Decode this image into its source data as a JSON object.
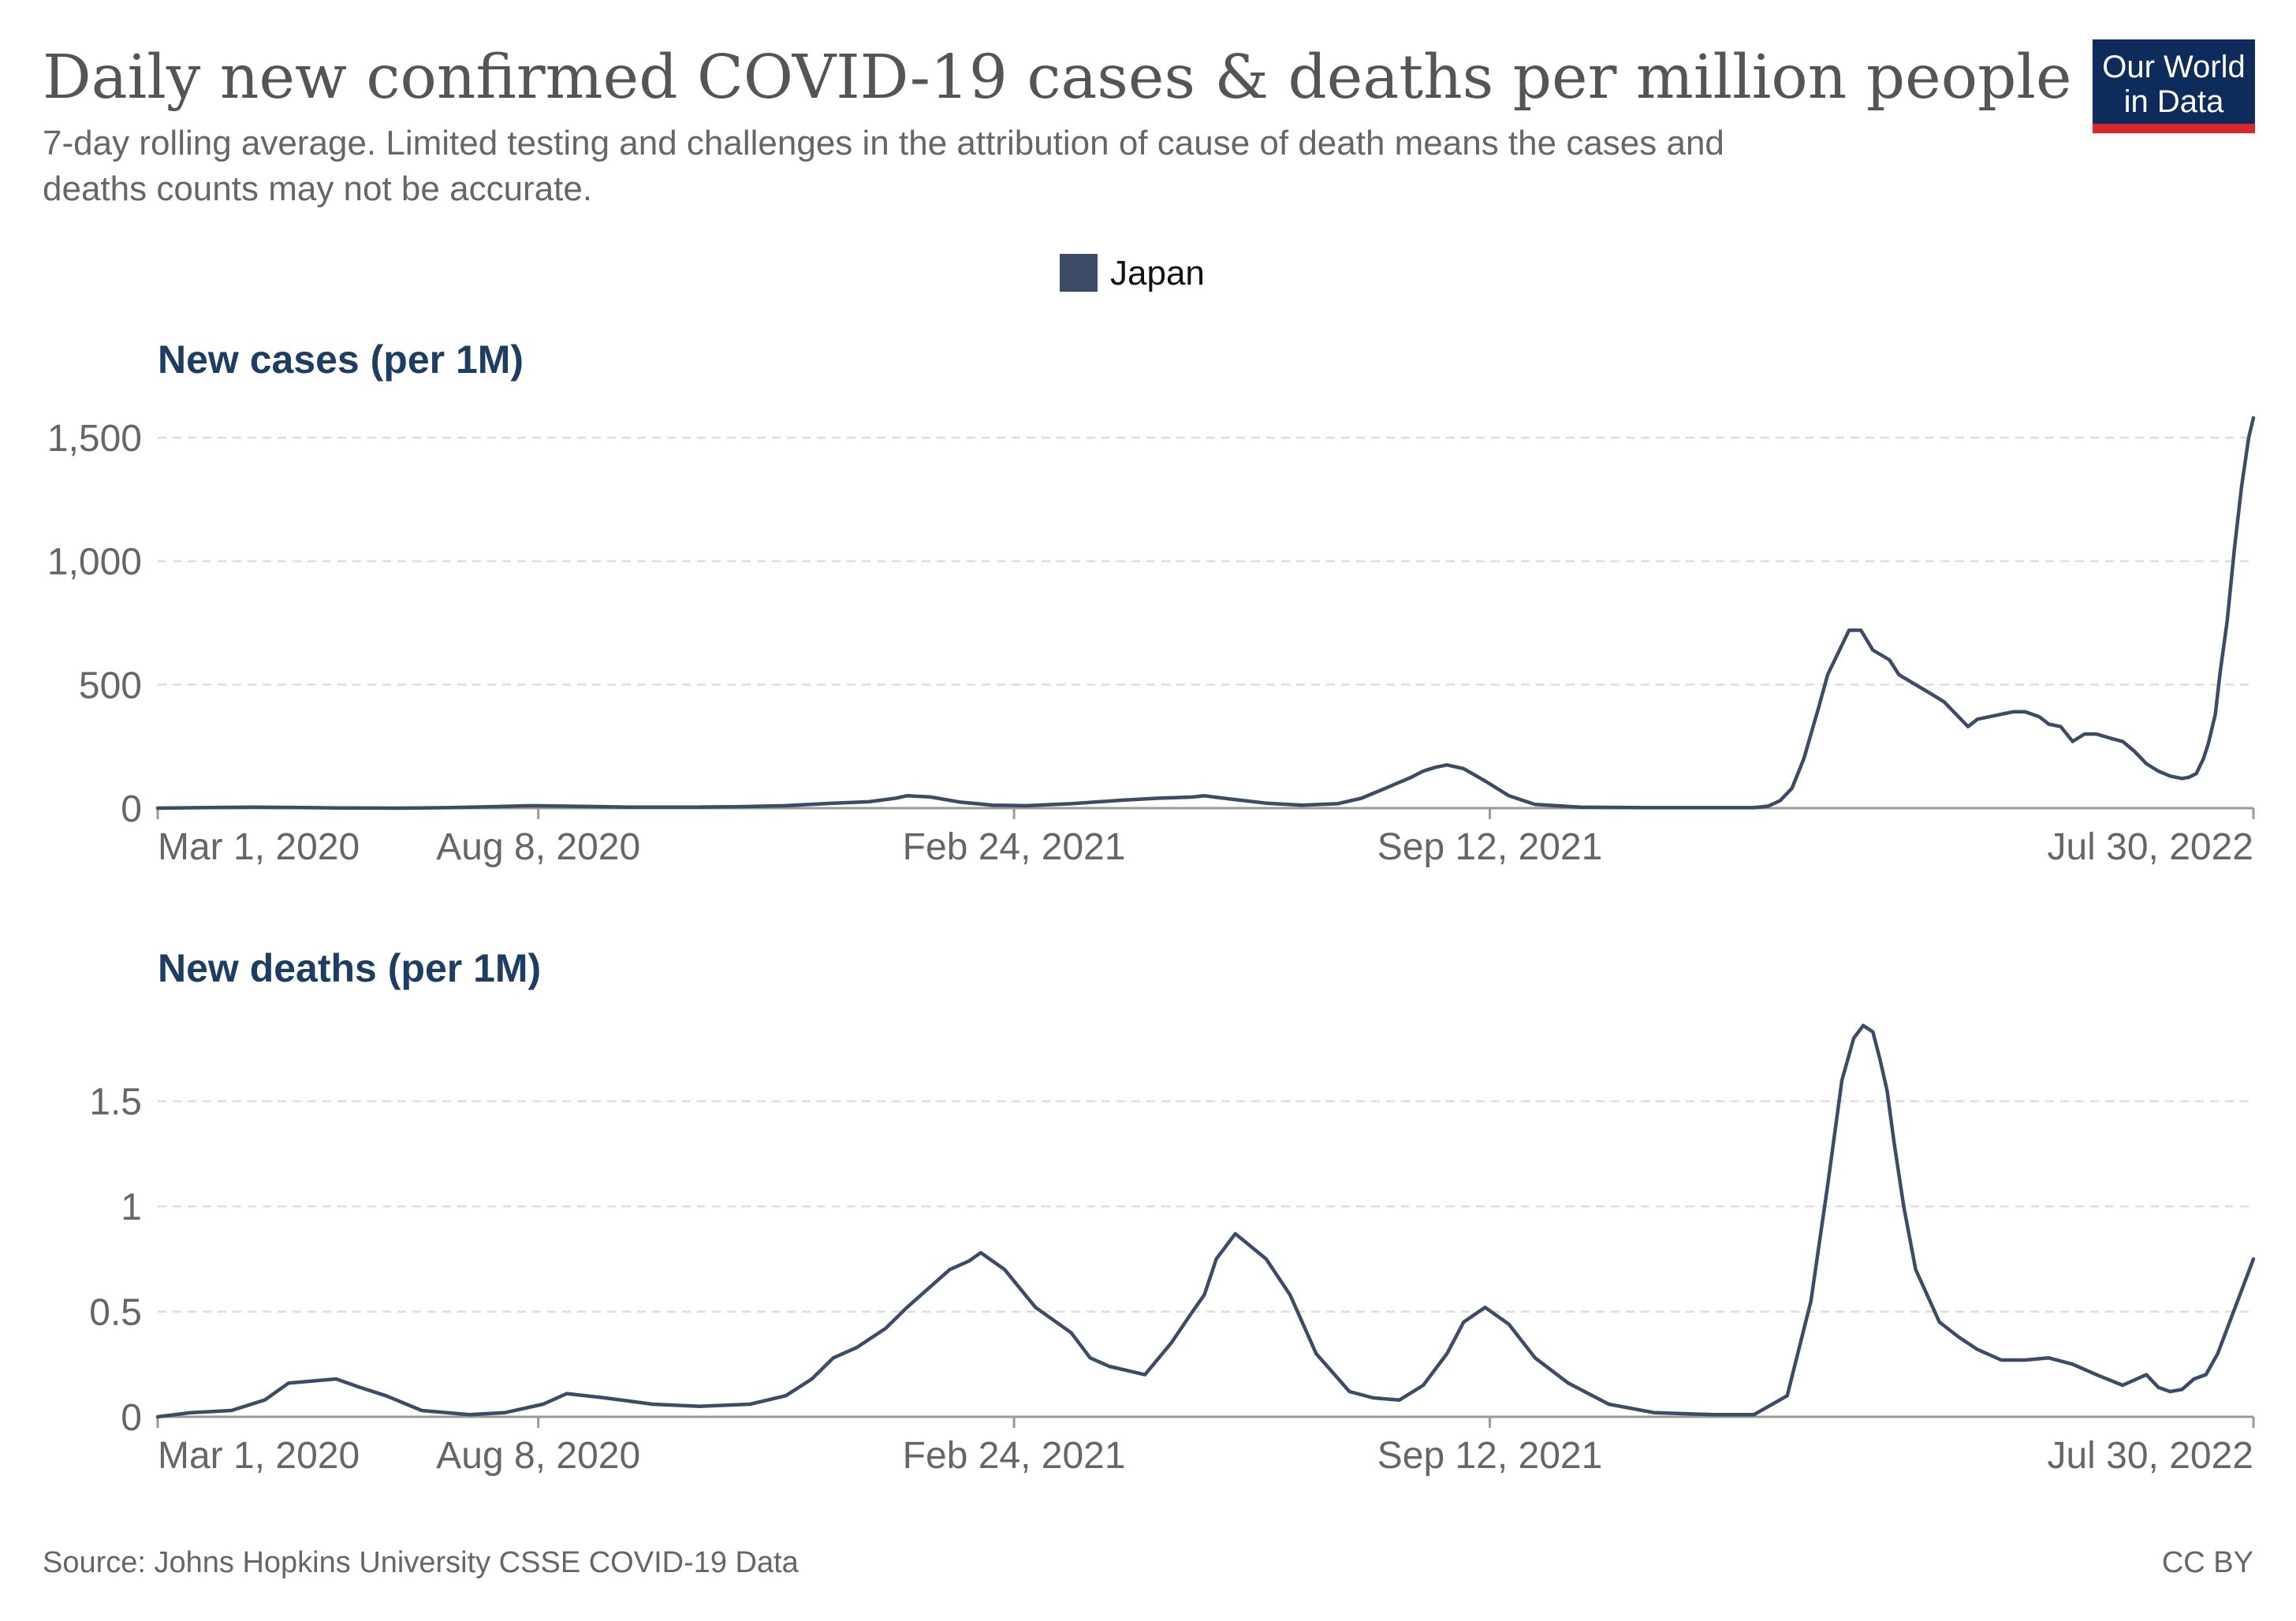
{
  "header": {
    "title": "Daily new confirmed COVID-19 cases & deaths per million people",
    "subtitle_line1": "7-day rolling average. Limited testing and challenges in the attribution of cause of death means the cases and",
    "subtitle_line2": "deaths counts may not be accurate."
  },
  "logo": {
    "line1": "Our World",
    "line2": "in Data",
    "bg_color": "#0d2c5b",
    "bar_color": "#d8272d"
  },
  "legend": {
    "label": "Japan",
    "color": "#3c4c66"
  },
  "footer": {
    "source": "Source: Johns Hopkins University CSSE COVID-19 Data",
    "license": "CC BY"
  },
  "chart_data": [
    {
      "type": "line",
      "title": "New cases (per 1M)",
      "x_axis": "date",
      "xlim": [
        "2020-03-01",
        "2022-07-30"
      ],
      "ylim": [
        0,
        1580
      ],
      "yticks": [
        0,
        500,
        1000,
        1500
      ],
      "ytick_labels": [
        "0",
        "500",
        "1,000",
        "1,500"
      ],
      "xticks": [
        "2020-03-01",
        "2020-08-08",
        "2021-02-24",
        "2021-09-12",
        "2022-07-30"
      ],
      "xtick_labels": [
        "Mar 1, 2020",
        "Aug 8, 2020",
        "Feb 24, 2021",
        "Sep 12, 2021",
        "Jul 30, 2022"
      ],
      "grid": true,
      "series": [
        {
          "name": "Japan",
          "color": "#3c4c66",
          "x": [
            "2020-03-01",
            "2020-03-20",
            "2020-04-10",
            "2020-04-25",
            "2020-05-15",
            "2020-06-10",
            "2020-07-01",
            "2020-07-20",
            "2020-08-05",
            "2020-08-20",
            "2020-09-15",
            "2020-10-15",
            "2020-11-01",
            "2020-11-20",
            "2020-12-10",
            "2020-12-25",
            "2021-01-05",
            "2021-01-10",
            "2021-01-20",
            "2021-02-01",
            "2021-02-15",
            "2021-03-01",
            "2021-03-20",
            "2021-04-10",
            "2021-04-25",
            "2021-05-10",
            "2021-05-15",
            "2021-05-25",
            "2021-06-10",
            "2021-06-25",
            "2021-07-10",
            "2021-07-20",
            "2021-07-30",
            "2021-08-10",
            "2021-08-15",
            "2021-08-20",
            "2021-08-25",
            "2021-09-01",
            "2021-09-10",
            "2021-09-20",
            "2021-10-01",
            "2021-10-20",
            "2021-11-15",
            "2021-12-15",
            "2022-01-01",
            "2022-01-07",
            "2022-01-12",
            "2022-01-17",
            "2022-01-22",
            "2022-01-28",
            "2022-02-01",
            "2022-02-04",
            "2022-02-07",
            "2022-02-10",
            "2022-02-15",
            "2022-02-20",
            "2022-02-27",
            "2022-03-03",
            "2022-03-10",
            "2022-03-17",
            "2022-03-22",
            "2022-03-27",
            "2022-04-01",
            "2022-04-05",
            "2022-04-10",
            "2022-04-15",
            "2022-04-20",
            "2022-04-25",
            "2022-05-01",
            "2022-05-05",
            "2022-05-10",
            "2022-05-15",
            "2022-05-20",
            "2022-05-25",
            "2022-06-01",
            "2022-06-05",
            "2022-06-10",
            "2022-06-15",
            "2022-06-20",
            "2022-06-25",
            "2022-06-30",
            "2022-07-03",
            "2022-07-06",
            "2022-07-09",
            "2022-07-11",
            "2022-07-14",
            "2022-07-16",
            "2022-07-19",
            "2022-07-22",
            "2022-07-25",
            "2022-07-28",
            "2022-07-30"
          ],
          "y": [
            0,
            2,
            4,
            3,
            1,
            0,
            2,
            6,
            10,
            8,
            4,
            4,
            6,
            10,
            20,
            26,
            40,
            50,
            45,
            25,
            12,
            10,
            18,
            32,
            40,
            45,
            50,
            38,
            20,
            12,
            18,
            40,
            80,
            125,
            150,
            165,
            175,
            160,
            110,
            50,
            15,
            4,
            2,
            2,
            2,
            8,
            30,
            80,
            200,
            400,
            540,
            600,
            660,
            720,
            720,
            640,
            600,
            540,
            500,
            460,
            430,
            380,
            330,
            360,
            370,
            380,
            390,
            390,
            370,
            340,
            330,
            270,
            300,
            300,
            280,
            270,
            230,
            180,
            150,
            130,
            120,
            125,
            140,
            200,
            260,
            380,
            550,
            760,
            1050,
            1300,
            1500,
            1580
          ]
        }
      ]
    },
    {
      "type": "line",
      "title": "New deaths (per 1M)",
      "x_axis": "date",
      "xlim": [
        "2020-03-01",
        "2022-07-30"
      ],
      "ylim": [
        0,
        1.9
      ],
      "yticks": [
        0,
        0.5,
        1,
        1.5
      ],
      "ytick_labels": [
        "0",
        "0.5",
        "1",
        "1.5"
      ],
      "xticks": [
        "2020-03-01",
        "2020-08-08",
        "2021-02-24",
        "2021-09-12",
        "2022-07-30"
      ],
      "xtick_labels": [
        "Mar 1, 2020",
        "Aug 8, 2020",
        "Feb 24, 2021",
        "Sep 12, 2021",
        "Jul 30, 2022"
      ],
      "grid": true,
      "series": [
        {
          "name": "Japan",
          "color": "#3c4c66",
          "x": [
            "2020-03-01",
            "2020-03-15",
            "2020-04-01",
            "2020-04-15",
            "2020-04-25",
            "2020-05-05",
            "2020-05-15",
            "2020-05-25",
            "2020-06-05",
            "2020-06-20",
            "2020-07-10",
            "2020-07-25",
            "2020-08-10",
            "2020-08-20",
            "2020-09-05",
            "2020-09-25",
            "2020-10-15",
            "2020-11-05",
            "2020-11-20",
            "2020-12-01",
            "2020-12-10",
            "2020-12-20",
            "2021-01-01",
            "2021-01-10",
            "2021-01-20",
            "2021-01-28",
            "2021-02-05",
            "2021-02-10",
            "2021-02-20",
            "2021-03-05",
            "2021-03-20",
            "2021-03-28",
            "2021-04-05",
            "2021-04-20",
            "2021-05-01",
            "2021-05-10",
            "2021-05-15",
            "2021-05-20",
            "2021-05-28",
            "2021-06-10",
            "2021-06-20",
            "2021-07-01",
            "2021-07-15",
            "2021-07-25",
            "2021-08-05",
            "2021-08-15",
            "2021-08-25",
            "2021-09-01",
            "2021-09-10",
            "2021-09-20",
            "2021-10-01",
            "2021-10-15",
            "2021-11-01",
            "2021-11-20",
            "2021-12-15",
            "2022-01-01",
            "2022-01-15",
            "2022-01-25",
            "2022-02-01",
            "2022-02-07",
            "2022-02-12",
            "2022-02-16",
            "2022-02-20",
            "2022-02-23",
            "2022-02-26",
            "2022-03-01",
            "2022-03-05",
            "2022-03-10",
            "2022-03-20",
            "2022-03-28",
            "2022-04-05",
            "2022-04-15",
            "2022-04-25",
            "2022-05-05",
            "2022-05-15",
            "2022-05-25",
            "2022-06-05",
            "2022-06-15",
            "2022-06-20",
            "2022-06-25",
            "2022-06-30",
            "2022-07-05",
            "2022-07-10",
            "2022-07-15",
            "2022-07-20",
            "2022-07-25",
            "2022-07-30"
          ],
          "y": [
            0,
            0.02,
            0.03,
            0.08,
            0.16,
            0.17,
            0.18,
            0.14,
            0.1,
            0.03,
            0.01,
            0.02,
            0.06,
            0.11,
            0.09,
            0.06,
            0.05,
            0.06,
            0.1,
            0.18,
            0.28,
            0.33,
            0.42,
            0.52,
            0.62,
            0.7,
            0.74,
            0.78,
            0.7,
            0.52,
            0.4,
            0.28,
            0.24,
            0.2,
            0.35,
            0.5,
            0.58,
            0.75,
            0.87,
            0.75,
            0.58,
            0.3,
            0.12,
            0.09,
            0.08,
            0.15,
            0.3,
            0.45,
            0.52,
            0.44,
            0.28,
            0.16,
            0.06,
            0.02,
            0.01,
            0.01,
            0.1,
            0.55,
            1.1,
            1.6,
            1.8,
            1.86,
            1.83,
            1.7,
            1.55,
            1.3,
            1.0,
            0.7,
            0.45,
            0.38,
            0.32,
            0.27,
            0.27,
            0.28,
            0.25,
            0.2,
            0.15,
            0.2,
            0.14,
            0.12,
            0.13,
            0.18,
            0.2,
            0.3,
            0.45,
            0.6,
            0.75
          ]
        }
      ]
    }
  ]
}
